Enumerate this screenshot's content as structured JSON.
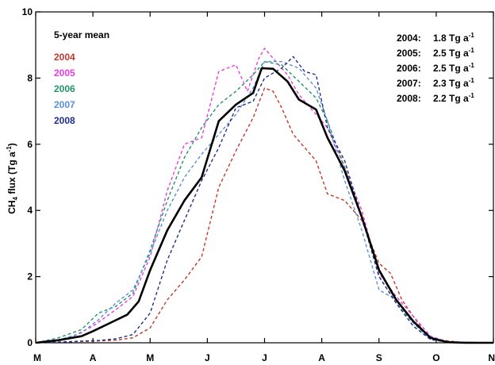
{
  "chart_data": {
    "type": "line",
    "title": "",
    "xlabel": "",
    "ylabel_main": "CH",
    "ylabel_sub": "4",
    "ylabel_rest": " flux (Tg a",
    "ylabel_sup": "-1",
    "ylabel_end": ")",
    "ylim": [
      0,
      10
    ],
    "xlim": [
      3.0,
      11.0
    ],
    "yticks": [
      0,
      2,
      4,
      6,
      8,
      10
    ],
    "xticks": [
      {
        "label": "M",
        "x": 3.0
      },
      {
        "label": "A",
        "x": 4.0
      },
      {
        "label": "M",
        "x": 5.0
      },
      {
        "label": "J",
        "x": 6.0
      },
      {
        "label": "J",
        "x": 7.0
      },
      {
        "label": "A",
        "x": 8.0
      },
      {
        "label": "S",
        "x": 9.0
      },
      {
        "label": "O",
        "x": 10.0
      },
      {
        "label": "N",
        "x": 11.0
      }
    ],
    "legend_header": "5-year mean",
    "series": [
      {
        "name": "2004",
        "color": "#c0392b",
        "dashed": true,
        "points": [
          [
            3.0,
            0.0
          ],
          [
            3.3,
            0.02
          ],
          [
            3.6,
            0.03
          ],
          [
            4.0,
            0.05
          ],
          [
            4.4,
            0.08
          ],
          [
            4.7,
            0.15
          ],
          [
            5.0,
            0.45
          ],
          [
            5.3,
            1.3
          ],
          [
            5.6,
            1.9
          ],
          [
            5.9,
            2.6
          ],
          [
            6.2,
            4.7
          ],
          [
            6.5,
            5.8
          ],
          [
            6.8,
            6.8
          ],
          [
            7.0,
            7.7
          ],
          [
            7.15,
            7.6
          ],
          [
            7.3,
            7.1
          ],
          [
            7.5,
            6.3
          ],
          [
            7.7,
            5.9
          ],
          [
            7.9,
            5.5
          ],
          [
            8.1,
            4.5
          ],
          [
            8.4,
            4.3
          ],
          [
            8.7,
            3.7
          ],
          [
            9.0,
            2.4
          ],
          [
            9.2,
            2.1
          ],
          [
            9.4,
            1.3
          ],
          [
            9.6,
            0.8
          ],
          [
            9.8,
            0.3
          ],
          [
            10.0,
            0.1
          ],
          [
            10.4,
            0.02
          ],
          [
            11.0,
            0.0
          ]
        ]
      },
      {
        "name": "2005",
        "color": "#e83ee0",
        "dashed": true,
        "points": [
          [
            3.0,
            0.0
          ],
          [
            3.3,
            0.05
          ],
          [
            3.6,
            0.15
          ],
          [
            4.0,
            0.5
          ],
          [
            4.4,
            1.0
          ],
          [
            4.7,
            1.4
          ],
          [
            5.0,
            2.6
          ],
          [
            5.3,
            4.6
          ],
          [
            5.6,
            6.0
          ],
          [
            5.9,
            6.2
          ],
          [
            6.2,
            8.2
          ],
          [
            6.5,
            8.4
          ],
          [
            6.7,
            7.6
          ],
          [
            6.9,
            8.6
          ],
          [
            7.0,
            8.9
          ],
          [
            7.2,
            8.5
          ],
          [
            7.4,
            8.1
          ],
          [
            7.6,
            7.5
          ],
          [
            7.9,
            6.9
          ],
          [
            8.1,
            6.5
          ],
          [
            8.4,
            5.3
          ],
          [
            8.7,
            4.0
          ],
          [
            9.0,
            2.1
          ],
          [
            9.3,
            1.4
          ],
          [
            9.6,
            0.8
          ],
          [
            9.9,
            0.2
          ],
          [
            10.2,
            0.03
          ],
          [
            11.0,
            0.0
          ]
        ]
      },
      {
        "name": "2006",
        "color": "#22936a",
        "dashed": true,
        "points": [
          [
            3.0,
            0.0
          ],
          [
            3.4,
            0.15
          ],
          [
            3.8,
            0.4
          ],
          [
            4.1,
            0.9
          ],
          [
            4.4,
            1.1
          ],
          [
            4.7,
            1.5
          ],
          [
            5.0,
            2.8
          ],
          [
            5.3,
            4.3
          ],
          [
            5.6,
            5.6
          ],
          [
            5.9,
            6.5
          ],
          [
            6.2,
            7.2
          ],
          [
            6.5,
            7.6
          ],
          [
            6.8,
            8.1
          ],
          [
            7.0,
            8.5
          ],
          [
            7.3,
            8.4
          ],
          [
            7.6,
            7.9
          ],
          [
            7.9,
            7.4
          ],
          [
            8.1,
            6.7
          ],
          [
            8.4,
            5.3
          ],
          [
            8.7,
            3.8
          ],
          [
            9.0,
            2.0
          ],
          [
            9.3,
            1.2
          ],
          [
            9.6,
            0.6
          ],
          [
            9.9,
            0.1
          ],
          [
            10.2,
            0.02
          ],
          [
            11.0,
            0.0
          ]
        ]
      },
      {
        "name": "2007",
        "color": "#5b8fd8",
        "dashed": true,
        "points": [
          [
            3.0,
            0.0
          ],
          [
            3.4,
            0.08
          ],
          [
            3.8,
            0.3
          ],
          [
            4.1,
            0.7
          ],
          [
            4.4,
            1.2
          ],
          [
            4.7,
            1.6
          ],
          [
            5.0,
            2.7
          ],
          [
            5.3,
            4.0
          ],
          [
            5.6,
            5.0
          ],
          [
            5.9,
            5.7
          ],
          [
            6.2,
            6.3
          ],
          [
            6.5,
            6.9
          ],
          [
            6.8,
            7.7
          ],
          [
            7.0,
            8.5
          ],
          [
            7.3,
            8.5
          ],
          [
            7.6,
            8.3
          ],
          [
            7.9,
            7.7
          ],
          [
            8.1,
            6.7
          ],
          [
            8.4,
            4.9
          ],
          [
            8.7,
            3.4
          ],
          [
            9.0,
            1.6
          ],
          [
            9.3,
            1.3
          ],
          [
            9.6,
            0.6
          ],
          [
            9.9,
            0.1
          ],
          [
            10.2,
            0.02
          ],
          [
            11.0,
            0.0
          ]
        ]
      },
      {
        "name": "2008",
        "color": "#1f2e8a",
        "dashed": true,
        "points": [
          [
            3.0,
            0.0
          ],
          [
            3.4,
            0.02
          ],
          [
            3.8,
            0.05
          ],
          [
            4.1,
            0.07
          ],
          [
            4.4,
            0.12
          ],
          [
            4.7,
            0.25
          ],
          [
            5.0,
            0.9
          ],
          [
            5.3,
            2.5
          ],
          [
            5.6,
            3.7
          ],
          [
            5.9,
            4.9
          ],
          [
            6.2,
            5.9
          ],
          [
            6.5,
            7.1
          ],
          [
            6.8,
            7.3
          ],
          [
            7.0,
            8.0
          ],
          [
            7.3,
            8.3
          ],
          [
            7.5,
            8.65
          ],
          [
            7.7,
            8.2
          ],
          [
            7.9,
            8.1
          ],
          [
            8.1,
            6.5
          ],
          [
            8.4,
            5.5
          ],
          [
            8.7,
            3.8
          ],
          [
            9.0,
            2.0
          ],
          [
            9.3,
            1.2
          ],
          [
            9.6,
            0.5
          ],
          [
            9.9,
            0.1
          ],
          [
            10.2,
            0.02
          ],
          [
            11.0,
            0.0
          ]
        ]
      },
      {
        "name": "5-year mean",
        "color": "#000000",
        "dashed": false,
        "width": 2.6,
        "points": [
          [
            3.0,
            0.0
          ],
          [
            3.4,
            0.08
          ],
          [
            3.8,
            0.2
          ],
          [
            4.0,
            0.35
          ],
          [
            4.3,
            0.6
          ],
          [
            4.6,
            0.85
          ],
          [
            4.8,
            1.25
          ],
          [
            5.0,
            2.2
          ],
          [
            5.3,
            3.4
          ],
          [
            5.6,
            4.3
          ],
          [
            5.9,
            5.0
          ],
          [
            6.2,
            6.7
          ],
          [
            6.5,
            7.2
          ],
          [
            6.8,
            7.55
          ],
          [
            6.95,
            8.3
          ],
          [
            7.15,
            8.28
          ],
          [
            7.4,
            7.9
          ],
          [
            7.6,
            7.35
          ],
          [
            7.9,
            7.05
          ],
          [
            8.1,
            6.2
          ],
          [
            8.4,
            5.2
          ],
          [
            8.7,
            3.8
          ],
          [
            9.0,
            2.2
          ],
          [
            9.3,
            1.3
          ],
          [
            9.6,
            0.65
          ],
          [
            9.9,
            0.15
          ],
          [
            10.2,
            0.02
          ],
          [
            10.5,
            0.0
          ],
          [
            11.0,
            0.0
          ]
        ]
      }
    ],
    "legend_entries": [
      {
        "label": "2004",
        "color": "#c0392b"
      },
      {
        "label": "2005",
        "color": "#e83ee0"
      },
      {
        "label": "2006",
        "color": "#22936a"
      },
      {
        "label": "2007",
        "color": "#5b8fd8"
      },
      {
        "label": "2008",
        "color": "#1f2e8a"
      }
    ],
    "totals": [
      {
        "year": "2004:",
        "value": "1.8 Tg a",
        "sup": "-1"
      },
      {
        "year": "2005:",
        "value": "2.5 Tg a",
        "sup": "-1"
      },
      {
        "year": "2006:",
        "value": "2.5 Tg a",
        "sup": "-1"
      },
      {
        "year": "2007:",
        "value": "2.3 Tg a",
        "sup": "-1"
      },
      {
        "year": "2008:",
        "value": "2.2 Tg a",
        "sup": "-1"
      }
    ]
  }
}
